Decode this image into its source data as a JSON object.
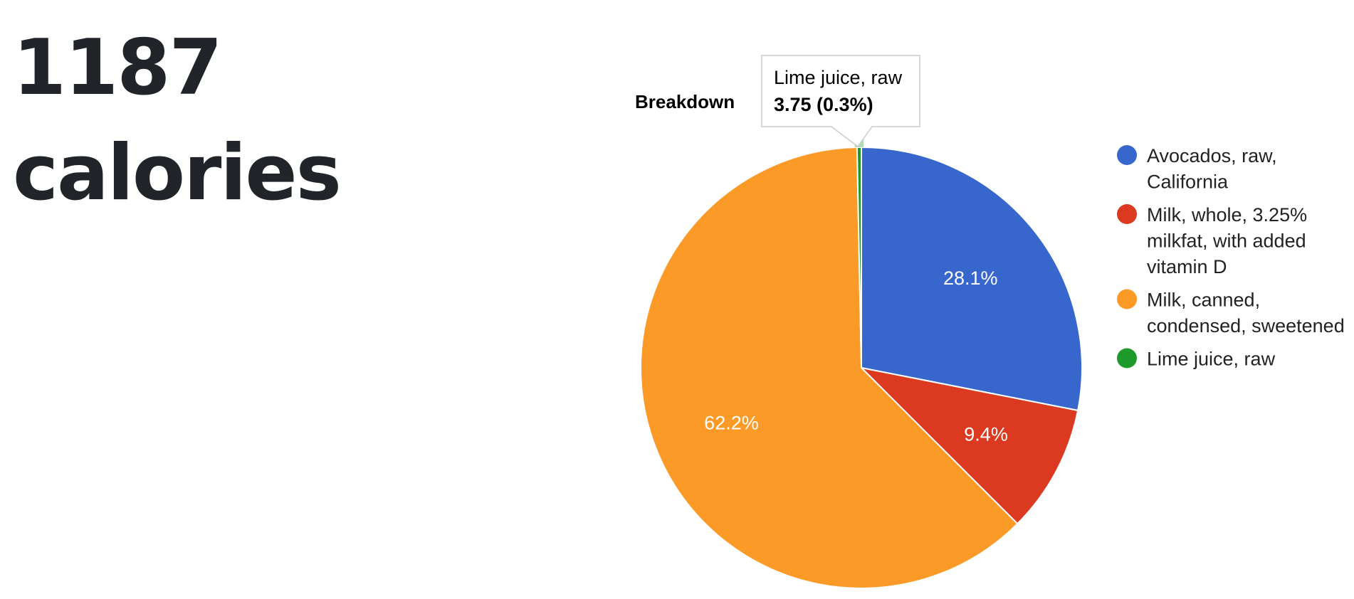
{
  "summary": {
    "value": "1187",
    "unit": "calories"
  },
  "chart_data": {
    "type": "pie",
    "title": "Breakdown",
    "series": [
      {
        "name": "Avocados, raw, California",
        "value": 333.6,
        "percent_label": "28.1%",
        "color": "#3767cc",
        "legend_lines": [
          "Avocados, raw,",
          "California"
        ]
      },
      {
        "name": "Milk, whole, 3.25% milkfat, with added vitamin D",
        "value": 111.6,
        "percent_label": "9.4%",
        "color": "#db3a20",
        "legend_lines": [
          "Milk, whole, 3.25%",
          "milkfat, with added",
          "vitamin D"
        ]
      },
      {
        "name": "Milk, canned, condensed, sweetened",
        "value": 738.3,
        "percent_label": "62.2%",
        "color": "#fb9a27",
        "legend_lines": [
          "Milk, canned,",
          "condensed, sweetened"
        ]
      },
      {
        "name": "Lime juice, raw",
        "value": 3.75,
        "percent_label": "",
        "color": "#1e9a2c",
        "legend_lines": [
          "Lime juice, raw"
        ]
      }
    ],
    "legend_position": "right",
    "tooltip": {
      "title": "Lime juice, raw",
      "value": "3.75 (0.3%)"
    }
  }
}
